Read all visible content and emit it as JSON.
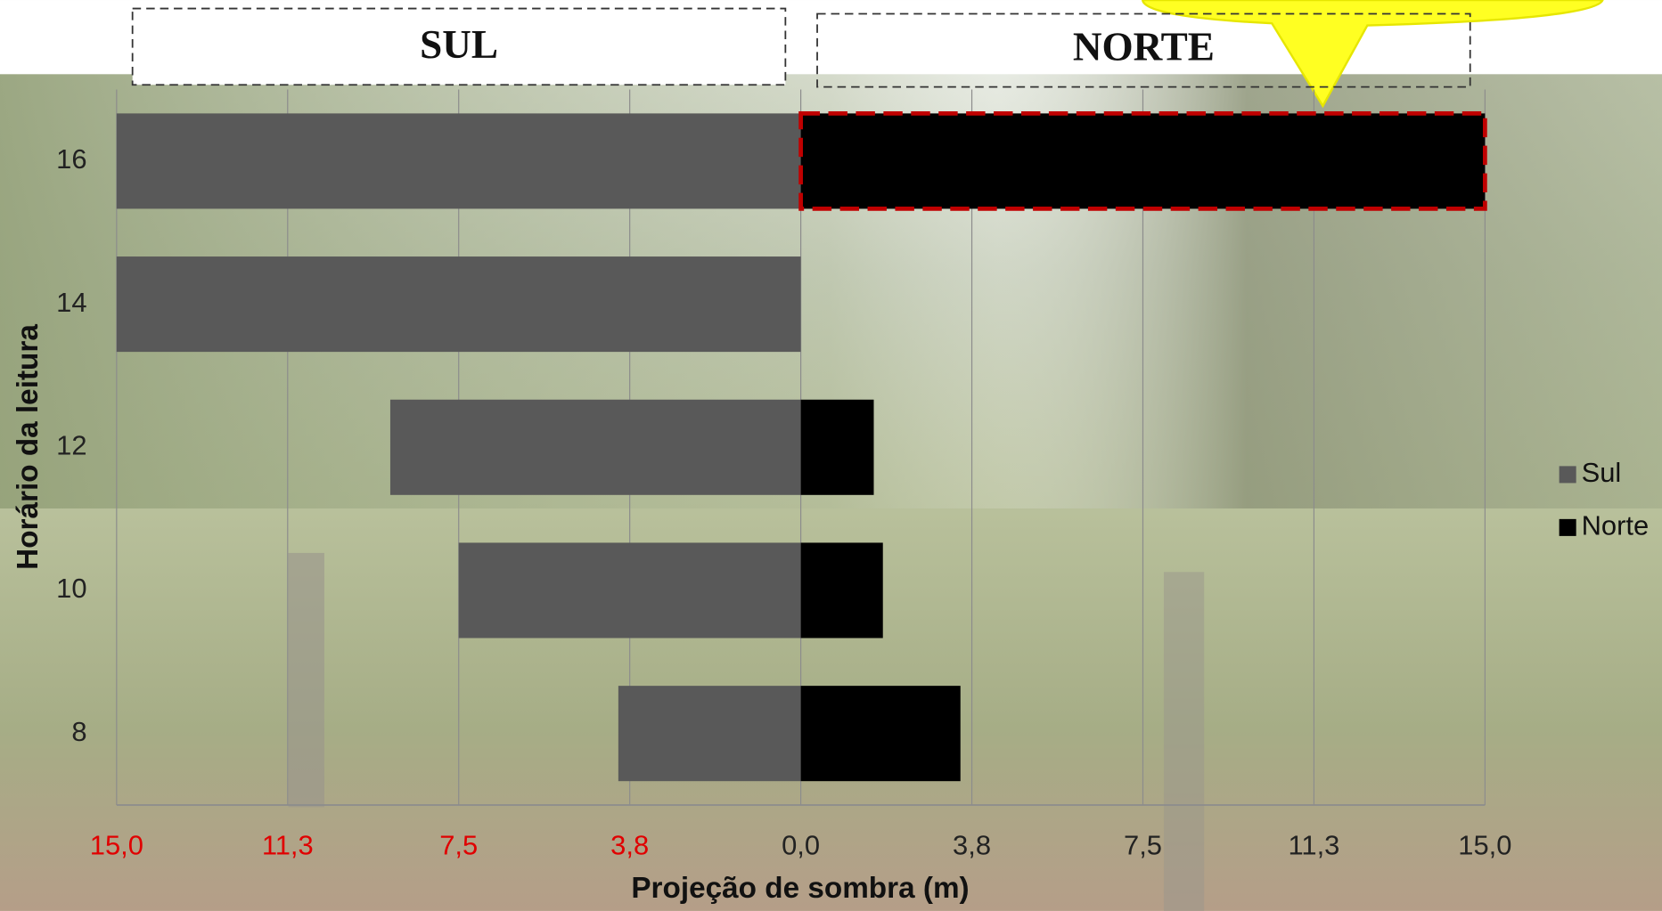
{
  "chart_data": {
    "type": "diverging_bar",
    "headers": [
      "SUL",
      "NORTE"
    ],
    "x_label": "Projeção de sombra (m)",
    "y_label": "Horário da leitura",
    "categories": [
      "8",
      "10",
      "12",
      "14",
      "16"
    ],
    "series": [
      {
        "name": "Sul",
        "color": "#595959",
        "values": [
          -4.0,
          -7.5,
          -9.0,
          -15.0,
          -15.0
        ]
      },
      {
        "name": "Norte",
        "color": "#000000",
        "values": [
          3.5,
          1.8,
          1.6,
          0,
          15.0
        ]
      }
    ],
    "xlim": [
      -15,
      15
    ],
    "xticks": [
      {
        "value": -15,
        "label": "15,0"
      },
      {
        "value": -11.25,
        "label": "11,3"
      },
      {
        "value": -7.5,
        "label": "7,5"
      },
      {
        "value": -3.75,
        "label": "3,8"
      },
      {
        "value": 0,
        "label": "0,0"
      },
      {
        "value": 3.75,
        "label": "3,8"
      },
      {
        "value": 7.5,
        "label": "7,5"
      },
      {
        "value": 11.25,
        "label": "11,3"
      },
      {
        "value": 15,
        "label": "15,0"
      }
    ],
    "grid": true,
    "legend": "right"
  }
}
